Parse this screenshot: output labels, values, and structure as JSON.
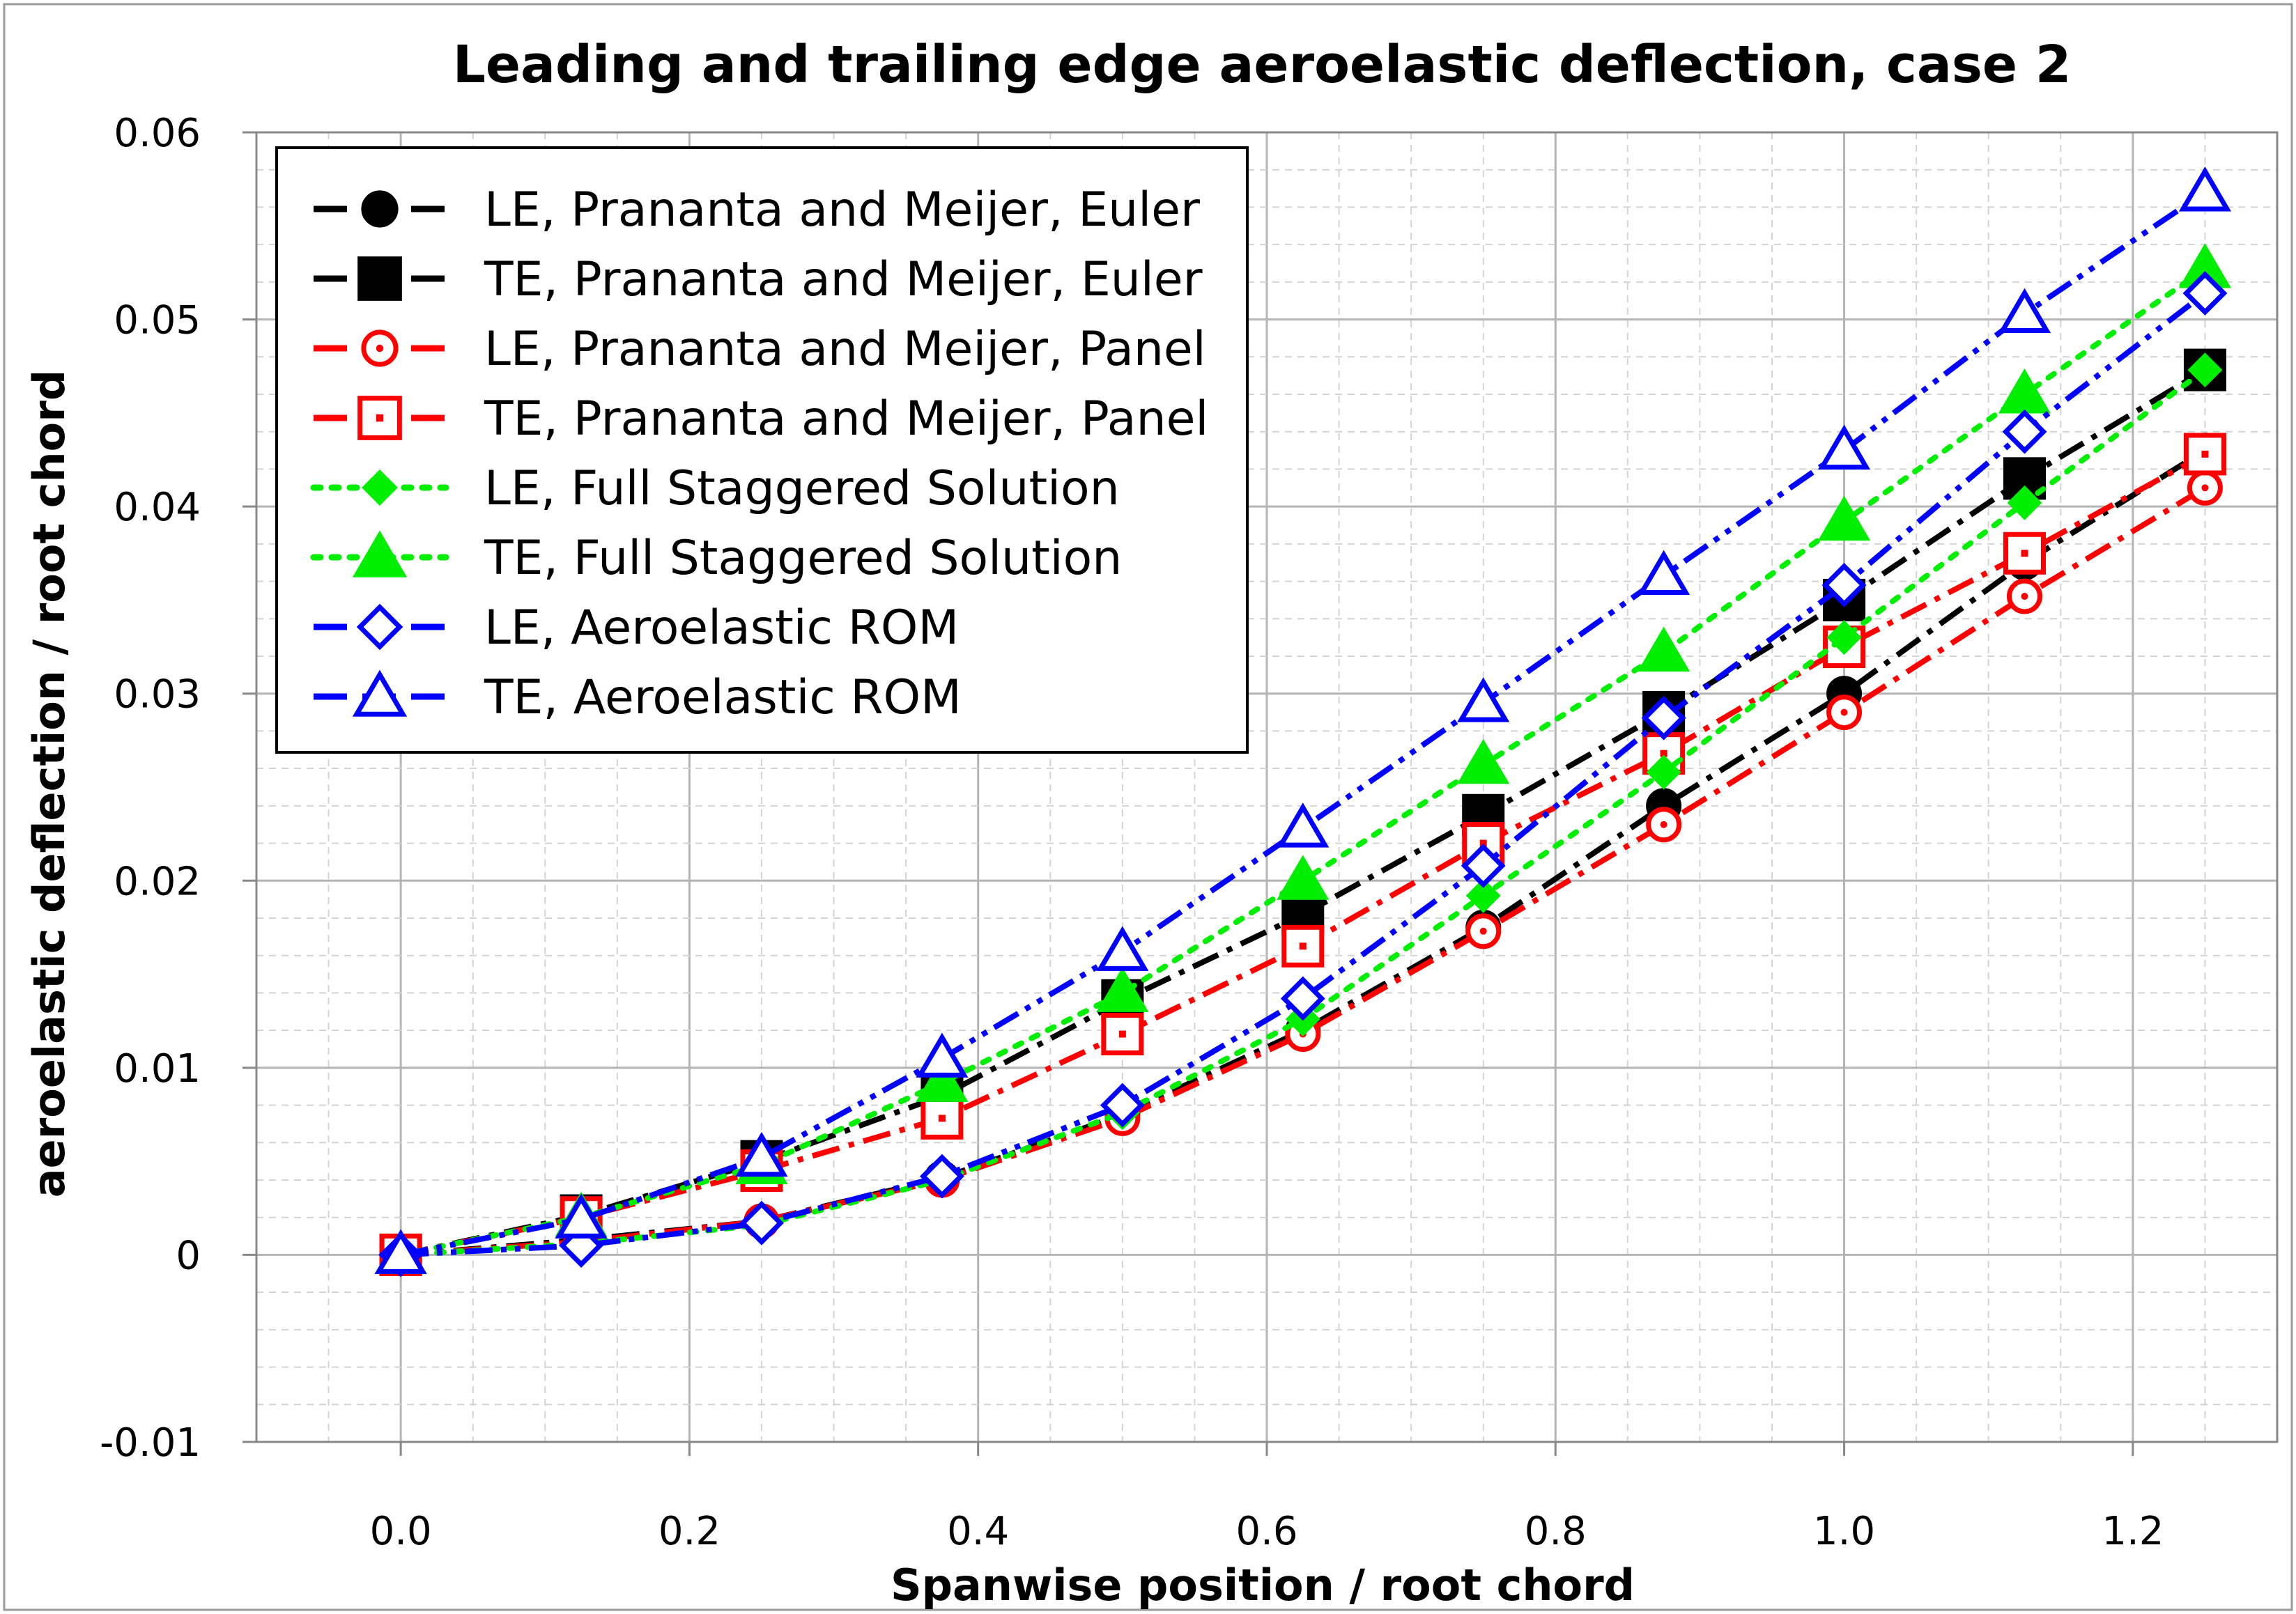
{
  "chart_data": {
    "type": "line",
    "title": "Leading and trailing edge aeroelastic deflection, case 2",
    "xlabel": "Spanwise position / root chord",
    "ylabel": "aeroelastic deflection / root chord",
    "xlim": [
      -0.1,
      1.3
    ],
    "ylim": [
      -0.01,
      0.06
    ],
    "grid": true,
    "legend_position": "top-left",
    "x_ticks": [
      0.0,
      0.2,
      0.4,
      0.6,
      0.8,
      1.0,
      1.2
    ],
    "x_tick_labels": [
      "0.0",
      "0.2",
      "0.4",
      "0.6",
      "0.8",
      "1.0",
      "1.2"
    ],
    "y_ticks": [
      -0.01,
      0,
      0.01,
      0.02,
      0.03,
      0.04,
      0.05,
      0.06
    ],
    "y_tick_labels": [
      "-0.01",
      "0",
      "0.01",
      "0.02",
      "0.03",
      "0.04",
      "0.05",
      "0.06"
    ],
    "x": [
      0.0,
      0.125,
      0.25,
      0.375,
      0.5,
      0.625,
      0.75,
      0.875,
      1.0,
      1.125,
      1.25
    ],
    "series": [
      {
        "name": "LE, Prananta and Meijer, Euler",
        "color": "#000000",
        "dash": "dashdot",
        "marker": "circle",
        "filled": true,
        "values": [
          0.0,
          0.0008,
          0.0018,
          0.0041,
          0.0075,
          0.012,
          0.0175,
          0.024,
          0.03,
          0.037,
          0.043
        ]
      },
      {
        "name": "TE, Prananta and Meijer, Euler",
        "color": "#000000",
        "dash": "dashdot",
        "marker": "square",
        "filled": true,
        "values": [
          0.0,
          0.0021,
          0.005,
          0.0085,
          0.0136,
          0.0182,
          0.0235,
          0.029,
          0.035,
          0.0415,
          0.0473
        ]
      },
      {
        "name": "LE, Prananta and Meijer, Panel",
        "color": "#ff0000",
        "dash": "dashdot",
        "marker": "circle",
        "filled": false,
        "values": [
          0.0,
          0.0007,
          0.0018,
          0.004,
          0.0073,
          0.0118,
          0.0173,
          0.023,
          0.029,
          0.0352,
          0.041
        ]
      },
      {
        "name": "TE, Prananta and Meijer, Panel",
        "color": "#ff0000",
        "dash": "dashdot",
        "marker": "square",
        "filled": false,
        "values": [
          0.0,
          0.002,
          0.0045,
          0.0073,
          0.0118,
          0.0165,
          0.022,
          0.0268,
          0.0325,
          0.0375,
          0.0428
        ]
      },
      {
        "name": "LE, Full Staggered Solution",
        "color": "#00ee00",
        "dash": "dotted",
        "marker": "diamond",
        "filled": true,
        "values": [
          0.0,
          0.0006,
          0.0016,
          0.004,
          0.0076,
          0.0126,
          0.0192,
          0.0258,
          0.033,
          0.0402,
          0.0473
        ]
      },
      {
        "name": "TE, Full Staggered Solution",
        "color": "#00ee00",
        "dash": "dotted",
        "marker": "triangle",
        "filled": true,
        "values": [
          0.0,
          0.002,
          0.0048,
          0.0092,
          0.014,
          0.02,
          0.0262,
          0.0322,
          0.0392,
          0.046,
          0.0527
        ]
      },
      {
        "name": "LE, Aeroelastic ROM",
        "color": "#0000ff",
        "dash": "dashdotdot",
        "marker": "diamond",
        "filled": false,
        "values": [
          0.0,
          0.0005,
          0.0017,
          0.0042,
          0.008,
          0.0137,
          0.0208,
          0.0287,
          0.0358,
          0.044,
          0.0514
        ]
      },
      {
        "name": "TE, Aeroelastic ROM",
        "color": "#0000ff",
        "dash": "dashdotdot",
        "marker": "triangle",
        "filled": false,
        "values": [
          0.0,
          0.0019,
          0.0052,
          0.0105,
          0.0162,
          0.0228,
          0.0295,
          0.0363,
          0.043,
          0.0503,
          0.0568
        ]
      }
    ]
  }
}
